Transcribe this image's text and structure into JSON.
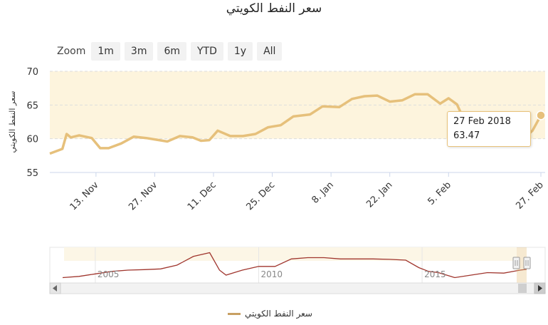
{
  "title": "سعر النفط الكويتي",
  "zoom": {
    "label": "Zoom",
    "buttons": [
      "1m",
      "3m",
      "6m",
      "YTD",
      "1y",
      "All"
    ]
  },
  "tooltip": {
    "date": "27 Feb 2018",
    "value": "63.47"
  },
  "legend": {
    "label": "سعر النفط الكويتي"
  },
  "colors": {
    "series": "#e6c07b",
    "band": "#fdf4dd",
    "navigator_series": "#a0362e"
  },
  "chart_data": [
    {
      "type": "line",
      "title": "سعر النفط الكويتي",
      "ylabel": "سعر النفط الكويتي",
      "xlabel": "",
      "ylim": [
        55,
        70
      ],
      "yticks": [
        55,
        60,
        65,
        70
      ],
      "xticks": [
        "13. Nov",
        "27. Nov",
        "11. Dec",
        "25. Dec",
        "8. Jan",
        "22. Jan",
        "5. Feb",
        "27. Feb"
      ],
      "grid": true,
      "series": [
        {
          "name": "سعر النفط الكويتي",
          "x": [
            "2017-11-02",
            "2017-11-05",
            "2017-11-06",
            "2017-11-07",
            "2017-11-09",
            "2017-11-12",
            "2017-11-14",
            "2017-11-16",
            "2017-11-19",
            "2017-11-22",
            "2017-11-25",
            "2017-11-27",
            "2017-11-30",
            "2017-12-03",
            "2017-12-06",
            "2017-12-08",
            "2017-12-10",
            "2017-12-12",
            "2017-12-15",
            "2017-12-18",
            "2017-12-21",
            "2017-12-24",
            "2017-12-27",
            "2017-12-30",
            "2018-01-03",
            "2018-01-06",
            "2018-01-10",
            "2018-01-13",
            "2018-01-16",
            "2018-01-19",
            "2018-01-22",
            "2018-01-25",
            "2018-01-28",
            "2018-01-31",
            "2018-02-03",
            "2018-02-05",
            "2018-02-07",
            "2018-02-10",
            "2018-02-13",
            "2018-02-16",
            "2018-02-19",
            "2018-02-22",
            "2018-02-25",
            "2018-02-27"
          ],
          "values": [
            57.8,
            58.5,
            60.7,
            60.2,
            60.5,
            60.1,
            58.6,
            58.6,
            59.3,
            60.3,
            60.1,
            59.9,
            59.6,
            60.4,
            60.2,
            59.7,
            59.8,
            61.2,
            60.4,
            60.4,
            60.7,
            61.7,
            62.0,
            63.3,
            63.6,
            64.8,
            64.7,
            65.9,
            66.3,
            66.4,
            65.5,
            65.7,
            66.6,
            66.6,
            65.2,
            66.0,
            65.1,
            61.0,
            59.6,
            59.3,
            59.0,
            59.6,
            61.2,
            63.47
          ]
        }
      ]
    },
    {
      "type": "line",
      "title": "",
      "xticks": [
        "2005",
        "2010",
        "2015"
      ],
      "series": [
        {
          "name": "",
          "x": [
            2004.0,
            2004.5,
            2005.0,
            2005.5,
            2006.0,
            2006.5,
            2007.0,
            2007.5,
            2008.0,
            2008.5,
            2008.8,
            2009.0,
            2009.5,
            2010.0,
            2010.5,
            2011.0,
            2011.5,
            2012.0,
            2012.5,
            2013.0,
            2013.5,
            2014.0,
            2014.5,
            2014.9,
            2015.2,
            2015.5,
            2016.0,
            2016.5,
            2017.0,
            2017.5,
            2018.0,
            2018.2
          ],
          "values": [
            30,
            35,
            45,
            55,
            60,
            62,
            65,
            80,
            115,
            130,
            60,
            40,
            60,
            75,
            75,
            105,
            110,
            110,
            105,
            105,
            105,
            103,
            100,
            70,
            55,
            50,
            30,
            40,
            50,
            48,
            60,
            63
          ]
        }
      ]
    }
  ]
}
